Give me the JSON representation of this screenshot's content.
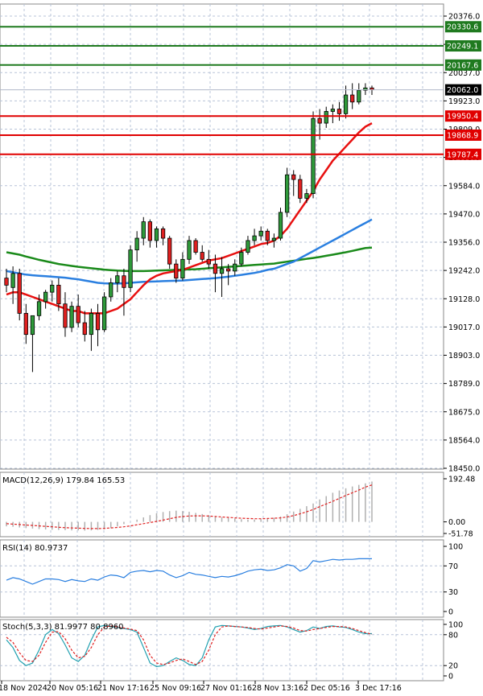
{
  "chart_data": {
    "type": "candlestick",
    "main": {
      "y_ticks": [
        "20376.0",
        "20148.0",
        "20037.0",
        "19923.0",
        "19809.0",
        "19695.0",
        "19584.0",
        "19470.0",
        "19356.0",
        "19242.0",
        "19128.0",
        "19017.0",
        "18903.0",
        "18789.0",
        "18675.0",
        "18564.0",
        "18450.0"
      ],
      "ylim": [
        18450,
        20376
      ],
      "current_price": "20062.0",
      "levels": [
        {
          "value": 20330.6,
          "label": "20330.6",
          "color": "#1f7a1f"
        },
        {
          "value": 20249.1,
          "label": "20249.1",
          "color": "#1f7a1f"
        },
        {
          "value": 20167.6,
          "label": "20167.6",
          "color": "#1f7a1f"
        },
        {
          "value": 19950.4,
          "label": "19950.4",
          "color": "#e00000"
        },
        {
          "value": 19868.9,
          "label": "19868.9",
          "color": "#e00000"
        },
        {
          "value": 19787.4,
          "label": "19787.4",
          "color": "#e00000"
        }
      ],
      "candles": [
        [
          19260,
          19300,
          19200,
          19230
        ],
        [
          19220,
          19310,
          19150,
          19280
        ],
        [
          19280,
          19300,
          19080,
          19110
        ],
        [
          19110,
          19150,
          18980,
          19020
        ],
        [
          19020,
          19090,
          18860,
          19100
        ],
        [
          19100,
          19190,
          19080,
          19160
        ],
        [
          19160,
          19210,
          19130,
          19200
        ],
        [
          19200,
          19250,
          19160,
          19230
        ],
        [
          19230,
          19260,
          19120,
          19150
        ],
        [
          19150,
          19200,
          19010,
          19050
        ],
        [
          19050,
          19160,
          19030,
          19140
        ],
        [
          19140,
          19190,
          19050,
          19070
        ],
        [
          19070,
          19120,
          18990,
          19020
        ],
        [
          19020,
          19130,
          18950,
          19110
        ],
        [
          19110,
          19150,
          18970,
          19040
        ],
        [
          19040,
          19200,
          19030,
          19180
        ],
        [
          19180,
          19260,
          19160,
          19240
        ],
        [
          19240,
          19290,
          19200,
          19270
        ],
        [
          19270,
          19300,
          19100,
          19220
        ],
        [
          19220,
          19400,
          19200,
          19380
        ],
        [
          19380,
          19460,
          19330,
          19430
        ],
        [
          19430,
          19520,
          19400,
          19500
        ],
        [
          19500,
          19510,
          19390,
          19420
        ],
        [
          19420,
          19480,
          19390,
          19470
        ],
        [
          19470,
          19480,
          19400,
          19430
        ],
        [
          19430,
          19440,
          19300,
          19320
        ],
        [
          19320,
          19340,
          19240,
          19260
        ],
        [
          19260,
          19370,
          19250,
          19340
        ],
        [
          19340,
          19440,
          19320,
          19420
        ],
        [
          19420,
          19430,
          19360,
          19370
        ],
        [
          19370,
          19400,
          19330,
          19340
        ],
        [
          19340,
          19380,
          19300,
          19320
        ],
        [
          19320,
          19360,
          19200,
          19280
        ],
        [
          19280,
          19350,
          19180,
          19300
        ],
        [
          19300,
          19320,
          19230,
          19290
        ],
        [
          19290,
          19340,
          19270,
          19320
        ],
        [
          19320,
          19390,
          19310,
          19370
        ],
        [
          19370,
          19440,
          19360,
          19420
        ],
        [
          19420,
          19470,
          19400,
          19440
        ],
        [
          19440,
          19480,
          19420,
          19460
        ],
        [
          19460,
          19470,
          19400,
          19420
        ],
        [
          19420,
          19450,
          19390,
          19430
        ],
        [
          19430,
          19560,
          19420,
          19540
        ],
        [
          19540,
          19730,
          19520,
          19700
        ],
        [
          19700,
          19720,
          19610,
          19680
        ],
        [
          19680,
          19700,
          19580,
          19600
        ],
        [
          19600,
          19640,
          19580,
          19620
        ],
        [
          19620,
          19970,
          19600,
          19940
        ],
        [
          19940,
          19980,
          19850,
          19920
        ],
        [
          19920,
          19990,
          19900,
          19970
        ],
        [
          19970,
          20000,
          19920,
          19980
        ],
        [
          19980,
          20010,
          19930,
          19960
        ],
        [
          19960,
          20080,
          19940,
          20040
        ],
        [
          20040,
          20090,
          19980,
          20010
        ],
        [
          20010,
          20090,
          20000,
          20060
        ],
        [
          20060,
          20090,
          20040,
          20070
        ],
        [
          20070,
          20080,
          20040,
          20062
        ]
      ],
      "ma_red": [
        19190,
        19200,
        19200,
        19190,
        19180,
        19170,
        19160,
        19150,
        19140,
        19130,
        19120,
        19120,
        19110,
        19110,
        19110,
        19110,
        19120,
        19130,
        19150,
        19170,
        19200,
        19230,
        19255,
        19270,
        19280,
        19285,
        19290,
        19295,
        19305,
        19315,
        19325,
        19335,
        19340,
        19345,
        19355,
        19365,
        19375,
        19385,
        19395,
        19405,
        19410,
        19420,
        19440,
        19470,
        19510,
        19550,
        19590,
        19630,
        19680,
        19720,
        19760,
        19790,
        19820,
        19850,
        19880,
        19905,
        19920
      ],
      "ma_blue": [
        19290,
        19285,
        19280,
        19275,
        19272,
        19270,
        19268,
        19266,
        19264,
        19262,
        19258,
        19255,
        19250,
        19245,
        19240,
        19238,
        19237,
        19237,
        19238,
        19240,
        19242,
        19244,
        19245,
        19246,
        19247,
        19248,
        19249,
        19250,
        19252,
        19254,
        19256,
        19258,
        19260,
        19263,
        19266,
        19270,
        19274,
        19278,
        19282,
        19288,
        19295,
        19300,
        19310,
        19320,
        19330,
        19345,
        19360,
        19375,
        19390,
        19405,
        19420,
        19435,
        19450,
        19465,
        19480,
        19495,
        19510
      ],
      "ma_green": [
        19370,
        19365,
        19360,
        19352,
        19345,
        19338,
        19332,
        19326,
        19320,
        19316,
        19312,
        19308,
        19305,
        19302,
        19299,
        19296,
        19294,
        19292,
        19291,
        19290,
        19290,
        19290,
        19291,
        19292,
        19293,
        19294,
        19295,
        19296,
        19297,
        19298,
        19300,
        19302,
        19304,
        19306,
        19308,
        19310,
        19312,
        19314,
        19316,
        19318,
        19320,
        19322,
        19326,
        19330,
        19334,
        19338,
        19342,
        19346,
        19350,
        19355,
        19360,
        19365,
        19370,
        19376,
        19382,
        19388,
        19390
      ]
    },
    "macd": {
      "title": "MACD(12,26,9) 179.84 165.53",
      "y_ticks": [
        "192.48",
        "0.00",
        "-51.78"
      ],
      "ylim": [
        -51.78,
        192.48
      ],
      "hist": [
        -20,
        -22,
        -25,
        -28,
        -30,
        -32,
        -34,
        -35,
        -36,
        -37,
        -38,
        -38,
        -39,
        -38,
        -36,
        -33,
        -28,
        -20,
        -10,
        0,
        10,
        20,
        30,
        38,
        44,
        48,
        50,
        48,
        45,
        40,
        35,
        30,
        25,
        20,
        18,
        15,
        12,
        10,
        10,
        12,
        14,
        18,
        24,
        34,
        46,
        58,
        70,
        82,
        100,
        115,
        130,
        140,
        150,
        158,
        165,
        172,
        180
      ],
      "signal": [
        -8,
        -10,
        -12,
        -14,
        -16,
        -18,
        -20,
        -22,
        -24,
        -26,
        -27,
        -28,
        -29,
        -30,
        -30,
        -29,
        -27,
        -25,
        -22,
        -18,
        -13,
        -8,
        -3,
        2,
        8,
        14,
        20,
        24,
        26,
        27,
        27,
        26,
        24,
        22,
        20,
        18,
        16,
        15,
        14,
        14,
        15,
        16,
        18,
        22,
        28,
        36,
        45,
        55,
        68,
        80,
        92,
        105,
        118,
        130,
        142,
        155,
        165
      ]
    },
    "rsi": {
      "title": "RSI(14) 80.9737",
      "y_ticks": [
        "100",
        "70",
        "30",
        "0"
      ],
      "ylim": [
        0,
        100
      ],
      "values": [
        48,
        52,
        50,
        46,
        42,
        46,
        50,
        50,
        49,
        46,
        49,
        47,
        46,
        50,
        48,
        53,
        56,
        55,
        52,
        60,
        62,
        63,
        61,
        63,
        62,
        56,
        52,
        55,
        60,
        57,
        56,
        54,
        52,
        54,
        53,
        55,
        58,
        62,
        64,
        65,
        63,
        64,
        67,
        72,
        70,
        62,
        66,
        78,
        76,
        78,
        80,
        79,
        80,
        80,
        81,
        81,
        81
      ]
    },
    "stoch": {
      "title": "Stoch(5,3,3) 81.9977 80.8960",
      "y_ticks": [
        "100",
        "80",
        "20",
        "0"
      ],
      "ylim": [
        0,
        100
      ],
      "k": [
        70,
        55,
        30,
        20,
        25,
        50,
        80,
        90,
        82,
        60,
        35,
        28,
        40,
        70,
        95,
        98,
        96,
        94,
        92,
        90,
        85,
        55,
        25,
        18,
        20,
        28,
        35,
        30,
        22,
        20,
        35,
        70,
        95,
        98,
        97,
        96,
        95,
        93,
        90,
        92,
        96,
        97,
        98,
        95,
        90,
        85,
        88,
        95,
        92,
        96,
        97,
        95,
        94,
        90,
        85,
        82,
        82
      ],
      "d": [
        75,
        65,
        45,
        30,
        28,
        40,
        65,
        85,
        86,
        72,
        50,
        35,
        38,
        55,
        80,
        95,
        97,
        95,
        93,
        91,
        88,
        70,
        40,
        25,
        22,
        25,
        30,
        33,
        28,
        22,
        28,
        50,
        80,
        95,
        97,
        96,
        95,
        94,
        92,
        91,
        93,
        95,
        97,
        96,
        93,
        88,
        87,
        90,
        92,
        94,
        96,
        96,
        95,
        92,
        88,
        84,
        81
      ]
    },
    "x_labels": [
      "18 Nov 2024",
      "20 Nov 05:16",
      "21 Nov 17:16",
      "25 Nov 09:16",
      "27 Nov 01:16",
      "28 Nov 13:16",
      "2 Dec 05:16",
      "3 Dec 17:16"
    ]
  }
}
